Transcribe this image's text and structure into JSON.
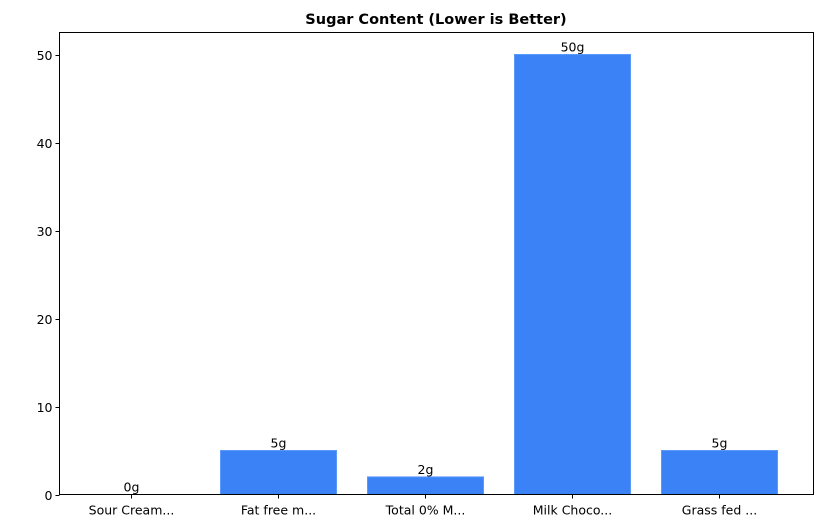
{
  "chart_data": {
    "type": "bar",
    "title": "Sugar Content (Lower is Better)",
    "xlabel": "",
    "ylabel": "",
    "categories": [
      "Sour Cream...",
      "Fat free m...",
      "Total 0% M...",
      "Milk Choco...",
      "Grass fed ..."
    ],
    "values": [
      0,
      5,
      2,
      50,
      5
    ],
    "data_labels": [
      "0g",
      "5g",
      "2g",
      "50g",
      "5g"
    ],
    "ylim": [
      0,
      52.5
    ],
    "yticks": [
      0,
      10,
      20,
      30,
      40,
      50
    ],
    "grid": false,
    "bar_color": "#3b82f6",
    "bar_edge_color": "#5b9af8"
  }
}
